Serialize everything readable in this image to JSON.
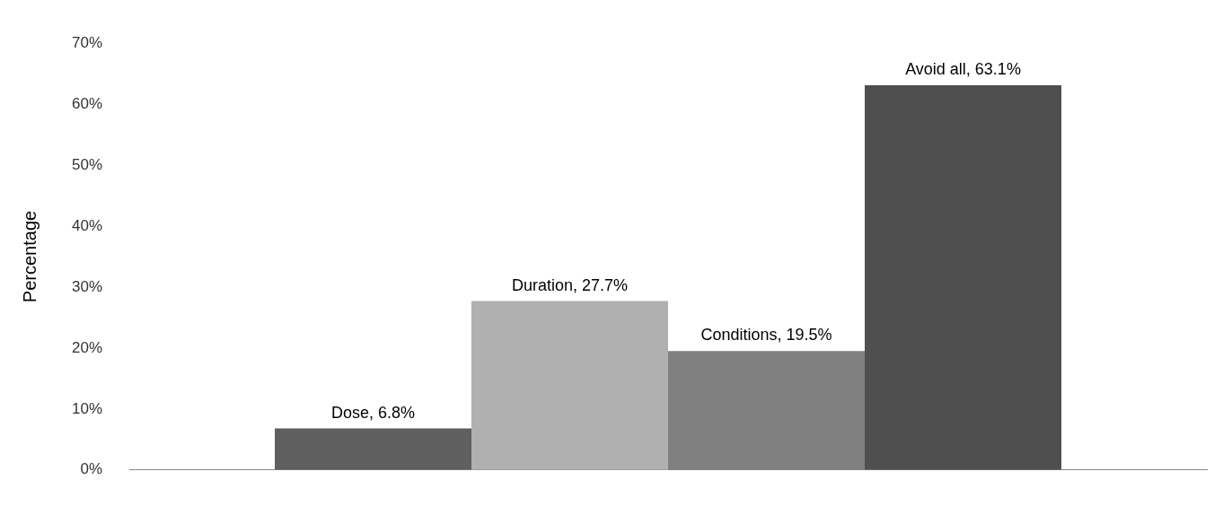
{
  "chart_data": {
    "type": "bar",
    "ylabel": "Percentage",
    "categories": [
      null
    ],
    "series": [
      {
        "color": "#5f5f5f",
        "values": [
          6.8
        ],
        "value_labels": [
          "Dose, 6.8%"
        ]
      },
      {
        "color": "#b0b0b0",
        "values": [
          27.7
        ],
        "value_labels": [
          "Duration, 27.7%"
        ]
      },
      {
        "color": "#808080",
        "values": [
          19.5
        ],
        "value_labels": [
          "Conditions, 19.5%"
        ]
      },
      {
        "color": "#4f4f4f",
        "values": [
          63.1
        ],
        "value_labels": [
          "Avoid all, 63.1%"
        ]
      }
    ],
    "ylim": [
      0,
      70
    ],
    "yticks": [
      {
        "value": 0,
        "label": "0%"
      },
      {
        "value": 10,
        "label": "10%"
      },
      {
        "value": 20,
        "label": "20%"
      },
      {
        "value": 30,
        "label": "30%"
      },
      {
        "value": 40,
        "label": "40%"
      },
      {
        "value": 50,
        "label": "50%"
      },
      {
        "value": 60,
        "label": "60%"
      },
      {
        "value": 70,
        "label": "70%"
      }
    ],
    "grid": false,
    "legend": false
  }
}
